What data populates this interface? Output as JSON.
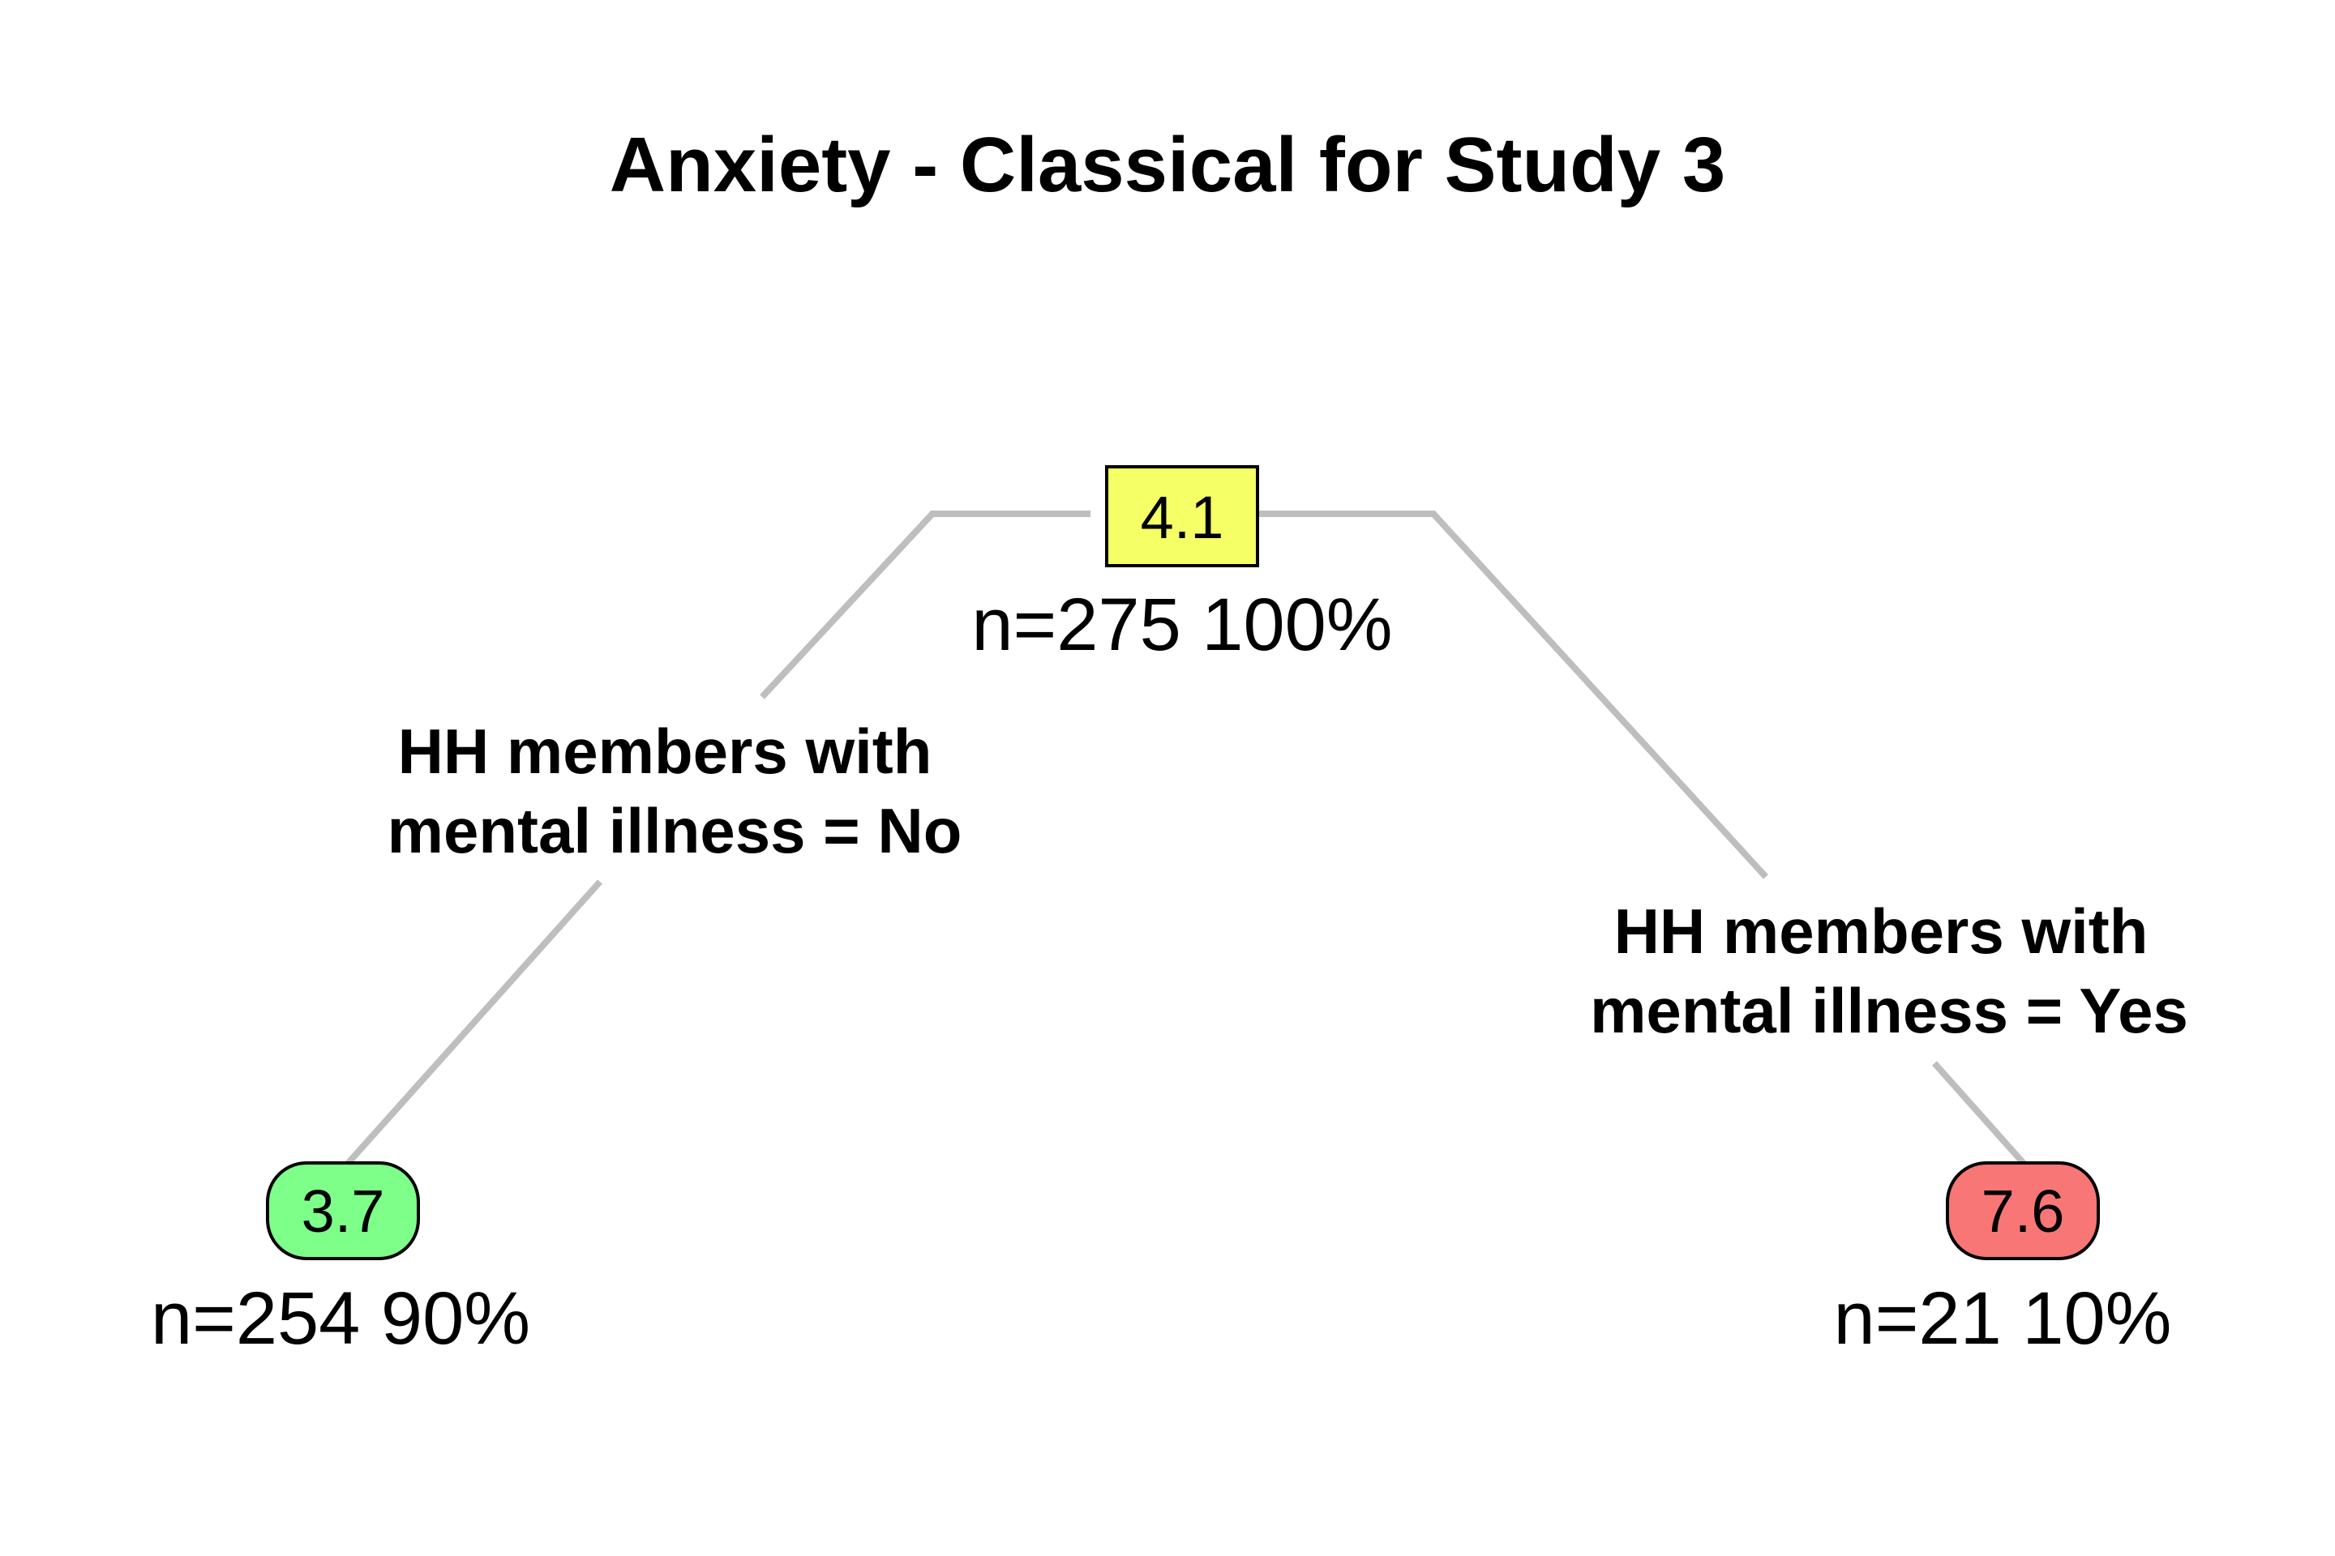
{
  "title": "Anxiety - Classical for Study 3",
  "colors": {
    "branch": "#bebebe",
    "root_fill": "#f5ff66",
    "left_leaf_fill": "#7dff8a",
    "right_leaf_fill": "#f87676",
    "outline": "#000000"
  },
  "tree": {
    "root": {
      "value": "4.1",
      "count": "n=275  100%",
      "shape": "rectangle"
    },
    "left_split": {
      "line1": "HH members with",
      "line2": "mental illness = No"
    },
    "right_split": {
      "line1": "HH members with",
      "line2": "mental illness = Yes"
    },
    "left_leaf": {
      "value": "3.7",
      "count": "n=254  90%",
      "shape": "rounded"
    },
    "right_leaf": {
      "value": "7.6",
      "count": "n=21  10%",
      "shape": "rounded"
    }
  }
}
